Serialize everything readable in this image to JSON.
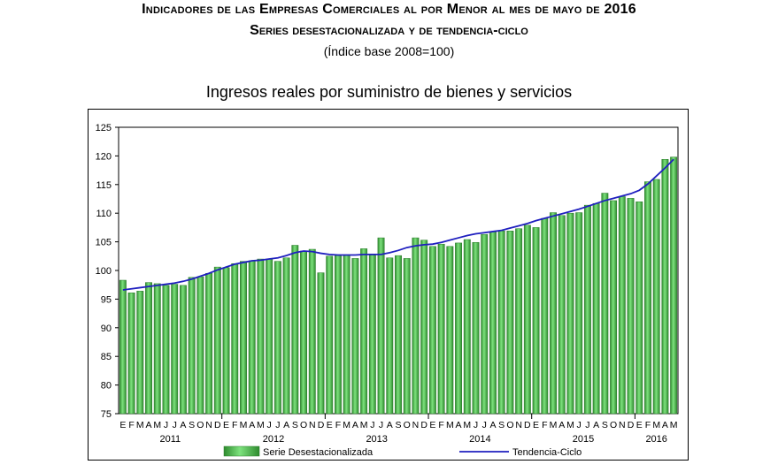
{
  "header": {
    "title": "Indicadores de las Empresas Comerciales al por Menor al mes de mayo de 2016",
    "subtitle": "Series desestacionalizada y de tendencia-ciclo",
    "base_note": "(Índice base 2008=100)"
  },
  "colors": {
    "bar": "#4fc24f",
    "bar_dark": "#2e8b2e",
    "trend": "#1f1fbf"
  },
  "chart_data": {
    "type": "bar",
    "title": "Ingresos reales por suministro de bienes y servicios",
    "ylim": [
      75,
      125
    ],
    "yticks": [
      75,
      80,
      85,
      90,
      95,
      100,
      105,
      110,
      115,
      120,
      125
    ],
    "month_labels": [
      "E",
      "F",
      "M",
      "A",
      "M",
      "J",
      "J",
      "A",
      "S",
      "O",
      "N",
      "D",
      "E",
      "F",
      "M",
      "A",
      "M",
      "J",
      "J",
      "A",
      "S",
      "O",
      "N",
      "D",
      "E",
      "F",
      "M",
      "A",
      "M",
      "J",
      "J",
      "A",
      "S",
      "O",
      "N",
      "D",
      "E",
      "F",
      "M",
      "A",
      "M",
      "J",
      "J",
      "A",
      "S",
      "O",
      "N",
      "D",
      "E",
      "F",
      "M",
      "A",
      "M",
      "J",
      "J",
      "A",
      "S",
      "O",
      "N",
      "D",
      "E",
      "F",
      "M",
      "A",
      "M"
    ],
    "year_labels": [
      {
        "year": "2011",
        "month_index": 5.5
      },
      {
        "year": "2012",
        "month_index": 17.5
      },
      {
        "year": "2013",
        "month_index": 29.5
      },
      {
        "year": "2014",
        "month_index": 41.5
      },
      {
        "year": "2015",
        "month_index": 53.5
      },
      {
        "year": "2016",
        "month_index": 62
      }
    ],
    "grid": false,
    "legend": "bottom",
    "series": [
      {
        "name": "Serie Desestacionalizada",
        "kind": "bar",
        "values": [
          98.3,
          96.1,
          96.4,
          97.9,
          97.7,
          97.4,
          97.6,
          97.4,
          98.8,
          98.9,
          99.5,
          100.6,
          100.5,
          101.2,
          101.6,
          101.7,
          102.0,
          102.0,
          101.6,
          102.2,
          104.4,
          103.4,
          103.7,
          99.6,
          102.5,
          102.6,
          102.7,
          102.1,
          103.8,
          102.7,
          105.7,
          102.2,
          102.6,
          102.1,
          105.7,
          105.3,
          104.2,
          104.6,
          104.2,
          104.8,
          105.4,
          104.9,
          106.3,
          106.8,
          106.9,
          106.9,
          107.3,
          107.9,
          107.5,
          109.1,
          110.1,
          109.6,
          110.0,
          110.1,
          111.4,
          111.7,
          113.5,
          112.2,
          112.9,
          112.6,
          112.0,
          115.5,
          115.9,
          119.4,
          119.8
        ]
      },
      {
        "name": "Tendencia-Ciclo",
        "kind": "line",
        "values": [
          96.6,
          96.8,
          97.0,
          97.2,
          97.4,
          97.6,
          97.8,
          98.1,
          98.5,
          99.0,
          99.5,
          100.1,
          100.6,
          101.1,
          101.4,
          101.7,
          101.8,
          102.0,
          102.2,
          102.6,
          103.1,
          103.4,
          103.3,
          103.0,
          102.8,
          102.7,
          102.7,
          102.7,
          102.8,
          102.8,
          102.8,
          103.1,
          103.5,
          104.0,
          104.3,
          104.5,
          104.6,
          104.9,
          105.3,
          105.7,
          106.1,
          106.4,
          106.6,
          106.8,
          107.0,
          107.4,
          107.8,
          108.2,
          108.7,
          109.1,
          109.5,
          109.9,
          110.3,
          110.7,
          111.2,
          111.7,
          112.2,
          112.6,
          113.0,
          113.4,
          114.0,
          115.1,
          116.5,
          117.9,
          119.4
        ]
      }
    ]
  }
}
